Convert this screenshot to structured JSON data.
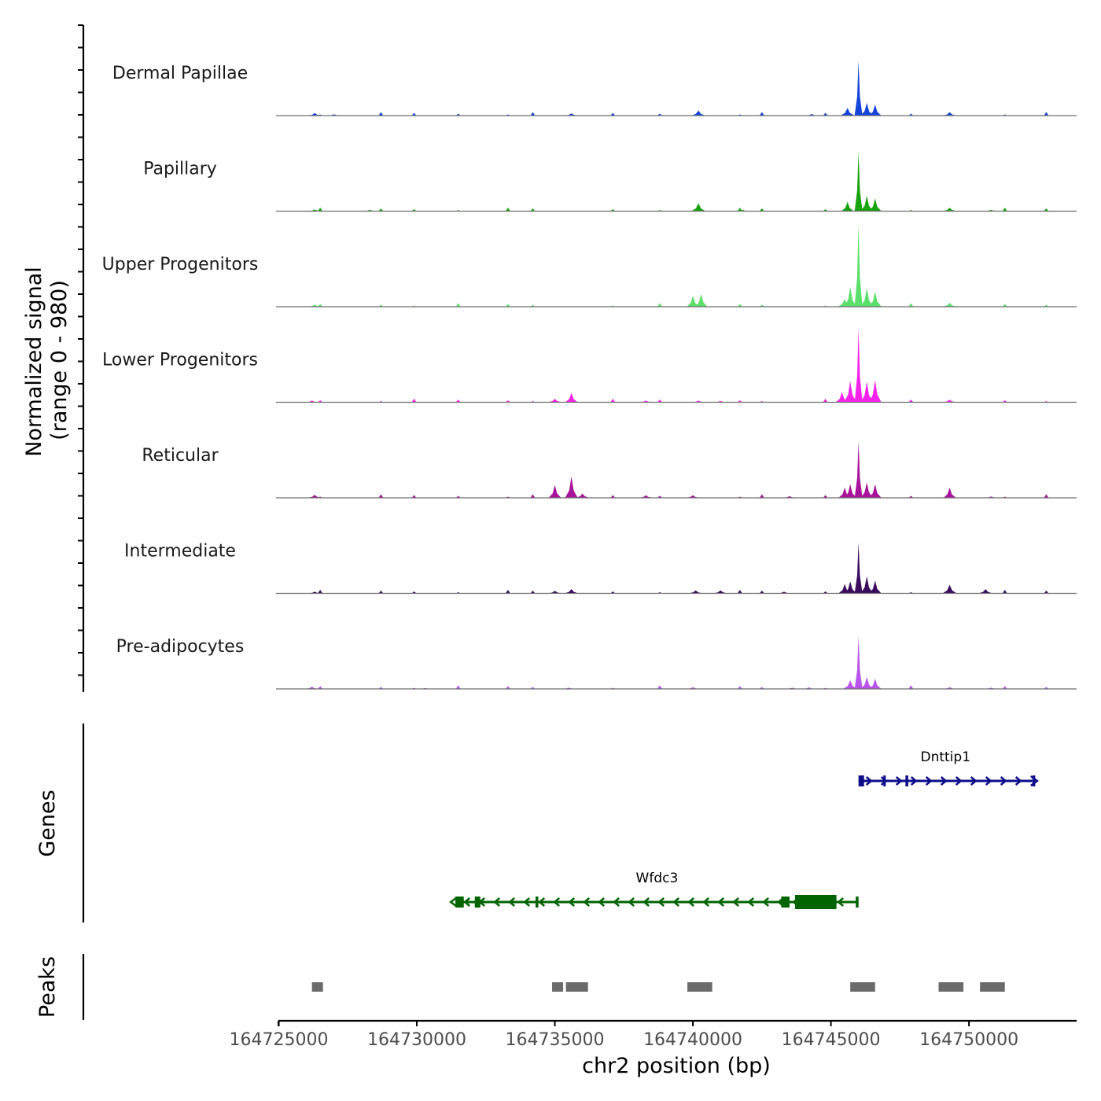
{
  "chart_data": {
    "type": "area",
    "chromosome": "chr2",
    "xlabel": "chr2 position (bp)",
    "xlim": [
      164724900,
      164753900
    ],
    "x_ticks": [
      164725000,
      164730000,
      164735000,
      164740000,
      164745000,
      164750000
    ],
    "x_tick_labels": [
      "164725000",
      "164730000",
      "164735000",
      "164740000",
      "164745000",
      "164750000"
    ],
    "coverage_ylabel_line1": "Normalized signal",
    "coverage_ylabel_line2": "(range 0 - 980)",
    "y_range": [
      0,
      980
    ],
    "series": [
      {
        "name": "Dermal Papillae",
        "color": "#1444D9",
        "peaks": [
          [
            164726300,
            30
          ],
          [
            164727000,
            15
          ],
          [
            164735600,
            25
          ],
          [
            164740200,
            60
          ],
          [
            164744300,
            18
          ],
          [
            164745600,
            90
          ],
          [
            164746000,
            640
          ],
          [
            164746300,
            150
          ],
          [
            164746600,
            130
          ],
          [
            164749300,
            40
          ]
        ]
      },
      {
        "name": "Papillary",
        "color": "#18A40E",
        "peaks": [
          [
            164726300,
            20
          ],
          [
            164728300,
            15
          ],
          [
            164740200,
            95
          ],
          [
            164741800,
            15
          ],
          [
            164745600,
            110
          ],
          [
            164746000,
            700
          ],
          [
            164746300,
            180
          ],
          [
            164746600,
            150
          ],
          [
            164749300,
            40
          ],
          [
            164750800,
            15
          ]
        ]
      },
      {
        "name": "Upper Progenitors",
        "color": "#5CE06C",
        "peaks": [
          [
            164726300,
            25
          ],
          [
            164740000,
            130
          ],
          [
            164740300,
            150
          ],
          [
            164745500,
            90
          ],
          [
            164745700,
            230
          ],
          [
            164746000,
            980
          ],
          [
            164746300,
            220
          ],
          [
            164746600,
            180
          ],
          [
            164749300,
            45
          ]
        ]
      },
      {
        "name": "Lower Progenitors",
        "color": "#F622EB",
        "peaks": [
          [
            164726200,
            20
          ],
          [
            164735000,
            40
          ],
          [
            164735600,
            110
          ],
          [
            164738300,
            20
          ],
          [
            164740200,
            20
          ],
          [
            164741000,
            15
          ],
          [
            164745400,
            120
          ],
          [
            164745700,
            250
          ],
          [
            164746000,
            870
          ],
          [
            164746300,
            240
          ],
          [
            164746600,
            260
          ],
          [
            164749300,
            30
          ]
        ]
      },
      {
        "name": "Reticular",
        "color": "#A8139B",
        "peaks": [
          [
            164726300,
            35
          ],
          [
            164735000,
            150
          ],
          [
            164735600,
            250
          ],
          [
            164736000,
            50
          ],
          [
            164738300,
            30
          ],
          [
            164740000,
            30
          ],
          [
            164743500,
            20
          ],
          [
            164745500,
            120
          ],
          [
            164745700,
            160
          ],
          [
            164746000,
            660
          ],
          [
            164746300,
            180
          ],
          [
            164746600,
            160
          ],
          [
            164749300,
            120
          ],
          [
            164750800,
            15
          ]
        ]
      },
      {
        "name": "Intermediate",
        "color": "#3B0C5E",
        "peaks": [
          [
            164726300,
            20
          ],
          [
            164735000,
            30
          ],
          [
            164735600,
            50
          ],
          [
            164740100,
            35
          ],
          [
            164741000,
            35
          ],
          [
            164743300,
            20
          ],
          [
            164745500,
            110
          ],
          [
            164745700,
            140
          ],
          [
            164746000,
            600
          ],
          [
            164746300,
            200
          ],
          [
            164746600,
            150
          ],
          [
            164749300,
            100
          ],
          [
            164750600,
            50
          ]
        ]
      },
      {
        "name": "Pre-adipocytes",
        "color": "#B853EC",
        "peaks": [
          [
            164726200,
            25
          ],
          [
            164730300,
            10
          ],
          [
            164735500,
            15
          ],
          [
            164740000,
            20
          ],
          [
            164743600,
            15
          ],
          [
            164744200,
            18
          ],
          [
            164745700,
            100
          ],
          [
            164746000,
            620
          ],
          [
            164746300,
            140
          ],
          [
            164746600,
            120
          ],
          [
            164749300,
            20
          ],
          [
            164750800,
            15
          ]
        ]
      }
    ],
    "genes_ylabel": "Genes",
    "genes": [
      {
        "name": "Dnttip1",
        "strand": "+",
        "color": "#0D0D8A",
        "start": 164746000,
        "end": 164752300,
        "exons": [
          [
            164746000,
            164746200
          ],
          [
            164746900,
            164746950
          ],
          [
            164747700,
            164747800
          ],
          [
            164752300,
            164752400
          ]
        ]
      },
      {
        "name": "Wfdc3",
        "strand": "-",
        "color": "#006400",
        "start": 164731400,
        "end": 164746000,
        "exons": [
          [
            164731400,
            164731700
          ],
          [
            164732100,
            164732300
          ],
          [
            164734300,
            164734400
          ],
          [
            164743200,
            164743500
          ],
          [
            164743700,
            164745200
          ],
          [
            164745900,
            164746000
          ]
        ]
      }
    ],
    "peaks_ylabel": "Peaks",
    "peak_regions": [
      [
        164726200,
        164726600
      ],
      [
        164734900,
        164735300
      ],
      [
        164735400,
        164736200
      ],
      [
        164739800,
        164740700
      ],
      [
        164745700,
        164746600
      ],
      [
        164748900,
        164749800
      ],
      [
        164750400,
        164751300
      ]
    ]
  }
}
